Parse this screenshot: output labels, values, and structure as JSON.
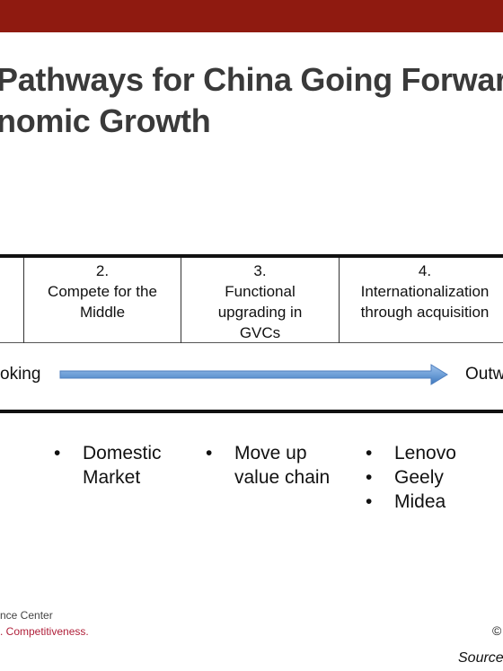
{
  "title": {
    "line1": "Pathways for China Going Forwar",
    "line2": "nomic Growth"
  },
  "table": {
    "columns": [
      {
        "number": "2.",
        "lines": [
          "Compete for the",
          "Middle"
        ]
      },
      {
        "number": "3.",
        "lines": [
          "Functional",
          "upgrading in",
          "GVCs"
        ]
      },
      {
        "number": "4.",
        "lines": [
          "Internationalization",
          "through acquisition"
        ]
      }
    ],
    "arrow": {
      "left_label": "oking",
      "right_label": "Outw"
    }
  },
  "bullets": [
    {
      "items": [
        "Domestic Market"
      ]
    },
    {
      "items": [
        "Move up value chain"
      ]
    },
    {
      "items": [
        "Lenovo",
        "Geely",
        "Midea"
      ]
    }
  ],
  "footer": {
    "logo_line1": "nce Center",
    "logo_line2": ". Competitiveness.",
    "copyright_symbol": "©",
    "source_text": "Source"
  },
  "colors": {
    "top_bar": "#8f1a10",
    "title_text": "#3a3a3a",
    "arrow_fill": "#6fa0d8",
    "logo_accent": "#b0203a"
  }
}
